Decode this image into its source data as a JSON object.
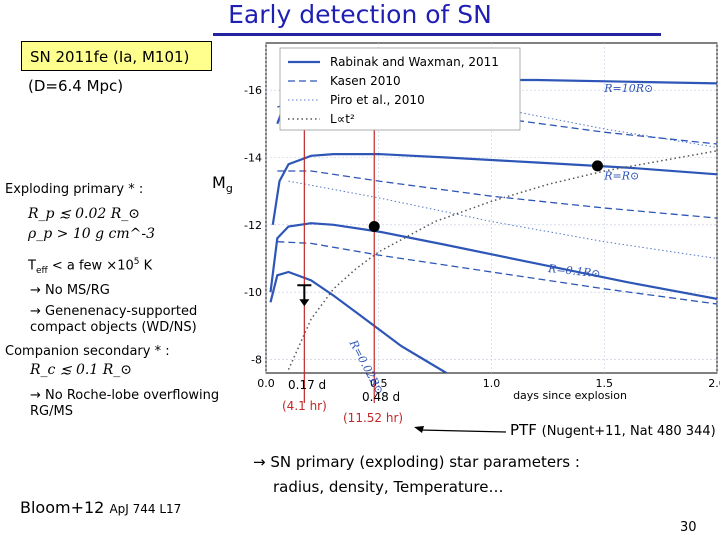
{
  "slide": {
    "title": "Early detection of SN",
    "sn_box": "SN 2011fe (Ia, M101)",
    "distance": "(D=6.4 Mpc)",
    "exploding_primary": "Exploding primary * :",
    "mg_main": "M",
    "mg_sub": "g",
    "eq_radius": "R_p ≲ 0.02 R_⊙",
    "eq_density": "ρ_p > 10 g cm^-3",
    "teff_main": "T",
    "teff_sub": "eff",
    "teff_rest": " < a few ×10",
    "teff_sup": "5",
    "teff_unit": " K",
    "bullet1": "No MS/RG",
    "bullet2": "Genenenacy-supported compact objects (WD/NS)",
    "companion": "Companion secondary * :",
    "eq_companion": "R_c ≲ 0.1 R_⊙",
    "bullet3": "No Roche-lobe overflowing RG/MS",
    "marker1_days": "0.17 d",
    "marker1_hours": "(4.1 hr)",
    "marker2_days": "0.48 d",
    "marker2_hours": "(11.52 hr)",
    "ptf_main": "PTF",
    "ptf_ref": "(Nugent+11, Nat 480 344)",
    "conclusion_line1": "SN primary (exploding) star parameters :",
    "conclusion_line2": "radius, density, Temperature…",
    "bloom_main": "Bloom+12",
    "bloom_ref": "ApJ 744 L17",
    "page_number": "30"
  },
  "chart_data": {
    "type": "line",
    "xlabel": "days since explosion",
    "ylabel": "",
    "xlim": [
      0,
      2.0
    ],
    "ylim": [
      -7.6,
      -17.4
    ],
    "xticks": [
      0.0,
      0.5,
      1.0,
      1.5,
      2.0
    ],
    "xtick_labels": [
      "0.0",
      "0.5",
      "1.0",
      "1.5",
      "2.0"
    ],
    "yticks": [
      -16,
      -14,
      -12,
      -10,
      -8
    ],
    "ytick_labels": [
      "-16",
      "-14",
      "-12",
      "-10",
      "-8"
    ],
    "y_inverted": true,
    "grid": true,
    "legend_position": "top-left",
    "legend": [
      {
        "label": "Rabinak and Waxman, 2011",
        "style": "solid"
      },
      {
        "label": "Kasen 2010",
        "style": "dashed"
      },
      {
        "label": "Piro et al., 2010",
        "style": "dotted-blue"
      },
      {
        "label": "L∝t²",
        "style": "dotted-black"
      }
    ],
    "curve_labels": [
      "R=10R⊙",
      "R=R⊙",
      "R=0.1R⊙",
      "R=0.02R⊙"
    ],
    "series": [
      {
        "model": "Rabinak and Waxman, 2011",
        "curve": "R=10R⊙",
        "x": [
          0.05,
          0.1,
          0.2,
          0.4,
          0.8,
          1.2,
          1.6,
          2.0
        ],
        "y": [
          -15.0,
          -15.9,
          -16.25,
          -16.3,
          -16.3,
          -16.3,
          -16.25,
          -16.2
        ]
      },
      {
        "model": "Rabinak and Waxman, 2011",
        "curve": "R=R⊙",
        "x": [
          0.03,
          0.06,
          0.1,
          0.2,
          0.3,
          0.5,
          0.8,
          1.2,
          1.6,
          2.0
        ],
        "y": [
          -12.0,
          -13.3,
          -13.8,
          -14.05,
          -14.1,
          -14.1,
          -14.0,
          -13.85,
          -13.7,
          -13.5
        ]
      },
      {
        "model": "Rabinak and Waxman, 2011",
        "curve": "R=0.1R⊙",
        "x": [
          0.02,
          0.05,
          0.1,
          0.2,
          0.3,
          0.5,
          0.8,
          1.2,
          1.6,
          2.0
        ],
        "y": [
          -10.0,
          -11.6,
          -11.95,
          -12.05,
          -12.0,
          -11.8,
          -11.4,
          -10.85,
          -10.3,
          -9.8
        ]
      },
      {
        "model": "Rabinak and Waxman, 2011",
        "curve": "R=0.02R⊙",
        "x": [
          0.02,
          0.05,
          0.1,
          0.2,
          0.3,
          0.4,
          0.5,
          0.6,
          0.7,
          0.8
        ],
        "y": [
          -9.7,
          -10.5,
          -10.6,
          -10.35,
          -9.9,
          -9.4,
          -8.9,
          -8.4,
          -8.0,
          -7.6
        ]
      },
      {
        "model": "Kasen 2010",
        "curve": "R=10R⊙",
        "x": [
          0.05,
          0.2,
          0.5,
          1.0,
          1.5,
          2.0
        ],
        "y": [
          -15.5,
          -15.75,
          -15.6,
          -15.2,
          -14.75,
          -14.4
        ]
      },
      {
        "model": "Kasen 2010",
        "curve": "R=R⊙",
        "x": [
          0.05,
          0.2,
          0.5,
          1.0,
          1.5,
          2.0
        ],
        "y": [
          -13.6,
          -13.6,
          -13.3,
          -12.85,
          -12.5,
          -12.2
        ]
      },
      {
        "model": "Kasen 2010",
        "curve": "R=0.1R⊙",
        "x": [
          0.05,
          0.2,
          0.5,
          1.0,
          1.5,
          2.0
        ],
        "y": [
          -11.5,
          -11.45,
          -11.1,
          -10.6,
          -10.1,
          -9.65
        ]
      },
      {
        "model": "Piro et al., 2010",
        "curve": "upper",
        "x": [
          0.2,
          0.5,
          1.0,
          1.5,
          2.0
        ],
        "y": [
          -16.9,
          -16.3,
          -15.5,
          -14.85,
          -14.3
        ]
      },
      {
        "model": "Piro et al., 2010",
        "curve": "lower",
        "x": [
          0.1,
          0.5,
          1.0,
          1.5,
          2.0
        ],
        "y": [
          -13.3,
          -12.8,
          -12.1,
          -11.5,
          -11.0
        ]
      },
      {
        "model": "L∝t²",
        "curve": "",
        "x": [
          0.1,
          0.2,
          0.3,
          0.4,
          0.5,
          0.75,
          1.0,
          1.25,
          1.5,
          1.75,
          2.0
        ],
        "y": [
          -7.7,
          -9.2,
          -10.1,
          -10.7,
          -11.2,
          -12.1,
          -12.7,
          -13.2,
          -13.6,
          -13.9,
          -14.2
        ]
      }
    ],
    "detections": [
      {
        "x": 1.47,
        "y": -13.75,
        "marker": "circle"
      },
      {
        "x": 0.48,
        "y": -11.95,
        "marker": "circle"
      }
    ],
    "upper_limit": {
      "x": 0.17,
      "y": -9.85,
      "marker": "down-arrow"
    },
    "vertical_markers": [
      0.17,
      0.48
    ],
    "colors": {
      "model_lines": "#2e56b7",
      "markers": "#c32828",
      "grid": "#c0c8dc",
      "powerlaw": "#555555",
      "highlight_box": "#ffff8e",
      "title": "#1f1fb4"
    }
  }
}
